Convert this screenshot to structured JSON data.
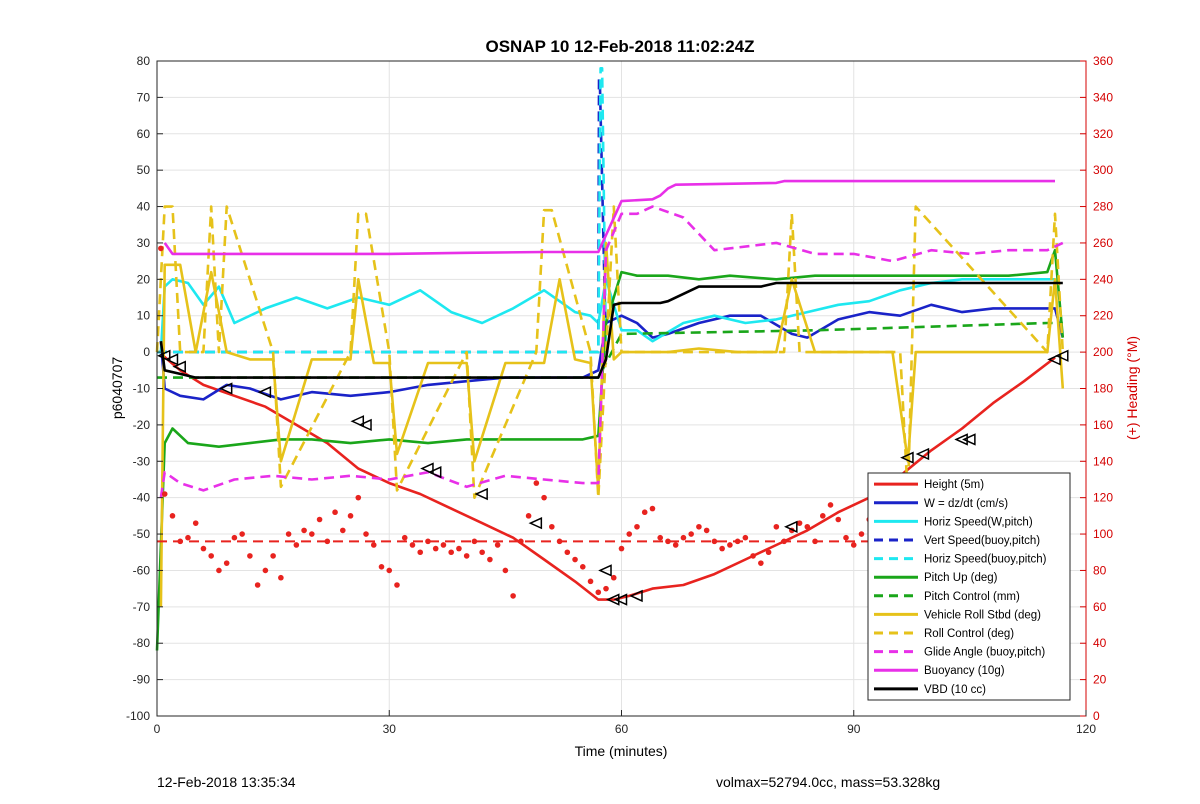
{
  "chart_data": {
    "type": "line",
    "title": "OSNAP 10 12-Feb-2018 11:02:24Z",
    "xlabel": "Time (minutes)",
    "ylabel": "p6040707",
    "ylabel_right": "(+) Heading (°M)",
    "xlim": [
      0,
      120
    ],
    "ylim": [
      -100,
      80
    ],
    "ylim_right": [
      0,
      360
    ],
    "x_ticks": [
      "0",
      "30",
      "60",
      "90",
      "120"
    ],
    "y_ticks": [
      "80",
      "70",
      "60",
      "50",
      "40",
      "30",
      "20",
      "10",
      "0",
      "-10",
      "-20",
      "-30",
      "-40",
      "-50",
      "-60",
      "-70",
      "-80",
      "-90",
      "-100"
    ],
    "y_ticks_right": [
      "360",
      "340",
      "320",
      "300",
      "280",
      "260",
      "240",
      "220",
      "200",
      "180",
      "160",
      "140",
      "120",
      "100",
      "80",
      "60",
      "40",
      "20",
      "0"
    ],
    "grid": true,
    "legend_position": "bottom-right",
    "colors": {
      "height": "#e8231f",
      "w": "#1a23c8",
      "horiz_speed": "#1ee8f0",
      "vert_speed": "#1a23c8",
      "pitch": "#1aa61a",
      "roll": "#e6c21a",
      "glide": "#e830e8",
      "buoyancy": "#e830e8",
      "vbd": "#000000",
      "heading": "#e8231f",
      "right_axis": "#d40000"
    },
    "series": [
      {
        "name": "Height (5m)",
        "style": "solid",
        "color": "#e8231f",
        "x": [
          0.5,
          3,
          6,
          10,
          14,
          18,
          22,
          26,
          30,
          34,
          38,
          42,
          46,
          50,
          54,
          57,
          59,
          61,
          64,
          68,
          72,
          76,
          80,
          84,
          88,
          92,
          96,
          100,
          104,
          108,
          112,
          116
        ],
        "y": [
          -0.5,
          -5,
          -9,
          -12,
          -15,
          -20,
          -25,
          -32,
          -36,
          -39,
          -43,
          -47,
          -51,
          -57,
          -63,
          -68,
          -68,
          -67,
          -65,
          -64,
          -61,
          -57,
          -53,
          -49,
          -44,
          -40,
          -34,
          -27,
          -21,
          -14,
          -8,
          -1.5
        ]
      },
      {
        "name": "W = dz/dt (cm/s)",
        "style": "solid",
        "color": "#1a23c8",
        "x": [
          0.5,
          1,
          3,
          6,
          9,
          12,
          16,
          20,
          25,
          30,
          35,
          40,
          45,
          50,
          55,
          57,
          58,
          60,
          62,
          64,
          66,
          70,
          74,
          78,
          82,
          84,
          88,
          92,
          96,
          100,
          104,
          108,
          112,
          116,
          117
        ],
        "y": [
          3,
          -10,
          -12,
          -13,
          -9,
          -10,
          -13,
          -11,
          -12,
          -11,
          -9,
          -8,
          -7,
          -7,
          -7,
          -5,
          8,
          10,
          8,
          4,
          5,
          8,
          10,
          10,
          5,
          4,
          9,
          11,
          10,
          13,
          11,
          12,
          12,
          12,
          4
        ]
      },
      {
        "name": "Horiz Speed(W,pitch)",
        "style": "solid",
        "color": "#1ee8f0",
        "x": [
          0.5,
          1,
          2,
          4,
          6,
          8,
          10,
          14,
          18,
          22,
          26,
          30,
          34,
          38,
          42,
          46,
          50,
          52,
          54,
          56,
          57,
          58,
          60,
          62,
          64,
          68,
          72,
          76,
          80,
          84,
          88,
          92,
          96,
          100,
          104,
          108,
          112,
          116
        ],
        "y": [
          0,
          18,
          20,
          19,
          13,
          18,
          8,
          12,
          15,
          12,
          15,
          13,
          17,
          11,
          8,
          12,
          17,
          14,
          11,
          10,
          8,
          20,
          6,
          6,
          3,
          8,
          10,
          8,
          9,
          11,
          13,
          14,
          17,
          19,
          20,
          20,
          20,
          20
        ]
      },
      {
        "name": "Vert Speed(buoy,pitch)",
        "style": "dashed",
        "color": "#1a23c8",
        "x": [
          0,
          55,
          57,
          57.1,
          57.2,
          58
        ],
        "y": [
          0,
          0,
          0,
          75,
          75,
          0
        ]
      },
      {
        "name": "Horiz Speed(buoy,pitch)",
        "style": "dashed",
        "color": "#1ee8f0",
        "x": [
          0,
          55,
          57,
          57.3,
          57.5,
          58
        ],
        "y": [
          0,
          0,
          0,
          78,
          78,
          0
        ]
      },
      {
        "name": "Pitch Up (deg)",
        "style": "solid",
        "color": "#1aa61a",
        "x": [
          0,
          1,
          2,
          4,
          8,
          12,
          16,
          20,
          25,
          30,
          35,
          40,
          45,
          50,
          55,
          57,
          58,
          60,
          62,
          66,
          70,
          74,
          80,
          85,
          90,
          95,
          100,
          105,
          110,
          115,
          116,
          117
        ],
        "y": [
          -82,
          -25,
          -21,
          -25,
          -26,
          -25,
          -24,
          -24,
          -25,
          -24,
          -25,
          -24,
          -24,
          -24,
          -24,
          -23,
          8,
          22,
          21,
          21,
          20,
          21,
          20,
          21,
          21,
          21,
          21,
          21,
          21,
          22,
          28,
          4
        ]
      },
      {
        "name": "Pitch Control (mm)",
        "style": "dashed",
        "color": "#1aa61a",
        "x": [
          0,
          56,
          57,
          60,
          85,
          115,
          117
        ],
        "y": [
          -7,
          -7,
          -7,
          5,
          6,
          8,
          8
        ]
      },
      {
        "name": "Vehicle Roll Stbd (deg)",
        "style": "solid",
        "color": "#e6c21a",
        "x": [
          0.5,
          1,
          3,
          5,
          7,
          9,
          12,
          15,
          16,
          20,
          25,
          26,
          28,
          30,
          31,
          35,
          40,
          41,
          45,
          50,
          52,
          54,
          56,
          57,
          58,
          59,
          60,
          62,
          66,
          70,
          75,
          80,
          82,
          85,
          90,
          95,
          97,
          98,
          100,
          105,
          110,
          115,
          116,
          117
        ],
        "y": [
          -70,
          24,
          24,
          0,
          22,
          0,
          -2,
          -2,
          -30,
          -2,
          -2,
          20,
          -3,
          -3,
          -28,
          -3,
          -3,
          -30,
          -3,
          -3,
          20,
          -2,
          -3,
          -38,
          30,
          -2,
          0,
          0,
          0,
          1,
          0,
          0,
          20,
          0,
          0,
          0,
          -30,
          0,
          0,
          0,
          0,
          0,
          20,
          -10
        ]
      },
      {
        "name": "Roll Control (deg)",
        "style": "dashed",
        "color": "#e6c21a",
        "x": [
          0,
          1,
          2,
          3,
          4,
          6,
          7,
          8,
          9,
          15,
          16,
          25,
          26,
          27,
          30,
          31,
          40,
          41,
          49,
          50,
          51,
          56,
          57,
          58,
          59,
          60,
          81,
          82,
          83,
          96,
          97,
          98,
          115,
          116,
          117
        ],
        "y": [
          0,
          40,
          40,
          0,
          0,
          0,
          40,
          0,
          40,
          0,
          -37,
          0,
          38,
          38,
          0,
          -38,
          0,
          -40,
          0,
          39,
          39,
          0,
          -40,
          0,
          40,
          0,
          0,
          38,
          0,
          0,
          -40,
          40,
          0,
          38,
          0
        ]
      },
      {
        "name": "Glide Angle (buoy,pitch)",
        "style": "dashed",
        "color": "#e830e8",
        "x": [
          0.5,
          1,
          3,
          6,
          10,
          15,
          20,
          25,
          30,
          35,
          40,
          45,
          50,
          55,
          57,
          58,
          60,
          62,
          64,
          68,
          72,
          80,
          85,
          90,
          95,
          100,
          105,
          110,
          115,
          117
        ],
        "y": [
          -40,
          -33,
          -36,
          -38,
          -35,
          -34,
          -35,
          -34,
          -35,
          -33,
          -37,
          -34,
          -35,
          -36,
          -36,
          28,
          38,
          38,
          40,
          37,
          28,
          30,
          27,
          27,
          25,
          28,
          27,
          28,
          28,
          30
        ]
      },
      {
        "name": "Buoyancy (10g)",
        "style": "solid",
        "color": "#e830e8",
        "x": [
          1,
          2,
          10,
          20,
          30,
          40,
          50,
          57,
          60,
          64,
          65,
          66,
          67,
          80,
          81,
          90,
          100,
          110,
          116
        ],
        "y": [
          30,
          27,
          27,
          27,
          27,
          27.3,
          27.5,
          27.5,
          41.5,
          42,
          43,
          45,
          46,
          46.5,
          47,
          47,
          47,
          47,
          47
        ]
      },
      {
        "name": "VBD (10 cc)",
        "style": "solid",
        "color": "#000000",
        "x": [
          0.5,
          1,
          3,
          5,
          10,
          20,
          30,
          40,
          50,
          57,
          58,
          59,
          60,
          62,
          64,
          65,
          66,
          70,
          78,
          80,
          82,
          90,
          100,
          110,
          116,
          117
        ],
        "y": [
          3,
          -5,
          -6,
          -7,
          -7,
          -7,
          -7,
          -7,
          -7,
          -7,
          -2,
          13,
          13.5,
          13.5,
          13.5,
          13.5,
          14,
          18,
          18,
          19,
          19,
          19,
          19,
          19,
          19,
          19
        ]
      }
    ],
    "heading": {
      "name": "Heading",
      "axis": "right",
      "style": "dots",
      "color": "#e8231f",
      "x": [
        0.5,
        1,
        2,
        3,
        4,
        5,
        6,
        7,
        8,
        9,
        10,
        11,
        12,
        13,
        14,
        15,
        16,
        17,
        18,
        19,
        20,
        21,
        22,
        23,
        24,
        25,
        26,
        27,
        28,
        29,
        30,
        31,
        32,
        33,
        34,
        35,
        36,
        37,
        38,
        39,
        40,
        41,
        42,
        43,
        44,
        45,
        46,
        47,
        48,
        49,
        50,
        51,
        52,
        53,
        54,
        55,
        56,
        57,
        58,
        59,
        60,
        61,
        62,
        63,
        64,
        65,
        66,
        67,
        68,
        69,
        70,
        71,
        72,
        73,
        74,
        75,
        76,
        77,
        78,
        79,
        80,
        81,
        82,
        83,
        84,
        85,
        86,
        87,
        88,
        89,
        90,
        91,
        92,
        93,
        94,
        95,
        96,
        97,
        98,
        99,
        100,
        101,
        102,
        103,
        104,
        105,
        106,
        107,
        108,
        109,
        110,
        111,
        112,
        113,
        114,
        115,
        116
      ],
      "y": [
        257,
        122,
        110,
        96,
        98,
        106,
        92,
        88,
        80,
        84,
        98,
        100,
        88,
        72,
        80,
        88,
        76,
        100,
        94,
        102,
        100,
        108,
        96,
        112,
        102,
        110,
        120,
        100,
        94,
        82,
        80,
        72,
        98,
        94,
        90,
        96,
        92,
        94,
        90,
        92,
        88,
        96,
        90,
        86,
        94,
        80,
        66,
        96,
        110,
        128,
        120,
        104,
        96,
        90,
        86,
        82,
        74,
        68,
        70,
        76,
        92,
        100,
        104,
        112,
        114,
        98,
        96,
        94,
        98,
        100,
        104,
        102,
        96,
        92,
        94,
        96,
        98,
        88,
        84,
        90,
        104,
        96,
        102,
        106,
        104,
        96,
        110,
        116,
        108,
        98,
        94,
        100,
        108,
        104,
        112,
        118,
        126,
        120,
        110,
        106,
        102,
        112,
        100,
        94,
        96,
        90,
        104,
        98,
        92,
        86,
        84,
        80,
        82,
        76,
        78,
        70,
        68
      ]
    },
    "heading_mean": {
      "name": "Heading mean",
      "axis": "right",
      "style": "dashed",
      "color": "#e8231f",
      "value": 96
    },
    "markers": {
      "color": "#000000",
      "x": [
        1,
        2,
        3,
        9,
        14,
        26,
        27,
        35,
        36,
        42,
        49,
        58,
        59,
        60,
        62,
        82,
        97,
        99,
        104,
        105,
        116,
        117
      ],
      "y": [
        -1,
        -2,
        -4,
        -10,
        -11,
        -19,
        -20,
        -32,
        -33,
        -39,
        -47,
        -60,
        -68,
        -68,
        -67,
        -48,
        -29,
        -28,
        -24,
        -24,
        -2,
        -1
      ]
    },
    "legend": [
      {
        "label": "Height (5m)",
        "color": "#e8231f",
        "style": "solid"
      },
      {
        "label": "W = dz/dt (cm/s)",
        "color": "#1a23c8",
        "style": "solid"
      },
      {
        "label": "Horiz Speed(W,pitch)",
        "color": "#1ee8f0",
        "style": "solid"
      },
      {
        "label": "Vert Speed(buoy,pitch)",
        "color": "#1a23c8",
        "style": "dashed"
      },
      {
        "label": "Horiz Speed(buoy,pitch)",
        "color": "#1ee8f0",
        "style": "dashed"
      },
      {
        "label": "Pitch Up (deg)",
        "color": "#1aa61a",
        "style": "solid"
      },
      {
        "label": "Pitch Control (mm)",
        "color": "#1aa61a",
        "style": "dashed"
      },
      {
        "label": "Vehicle Roll Stbd (deg)",
        "color": "#e6c21a",
        "style": "solid"
      },
      {
        "label": "Roll Control (deg)",
        "color": "#e6c21a",
        "style": "dashed"
      },
      {
        "label": "Glide Angle (buoy,pitch)",
        "color": "#e830e8",
        "style": "dashed"
      },
      {
        "label": "Buoyancy (10g)",
        "color": "#e830e8",
        "style": "solid"
      },
      {
        "label": "VBD (10 cc)",
        "color": "#000000",
        "style": "solid"
      }
    ]
  },
  "footer": {
    "timestamp": "12-Feb-2018 13:35:34",
    "volmax_mass": "volmax=52794.0cc, mass=53.328kg"
  }
}
